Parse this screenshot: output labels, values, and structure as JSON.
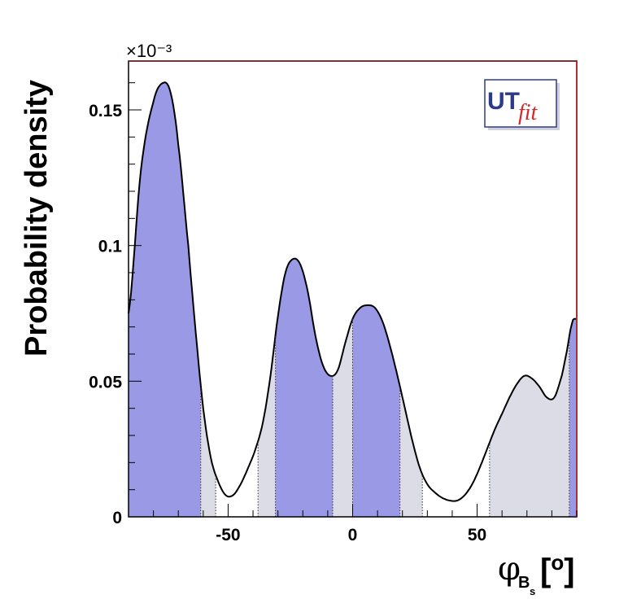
{
  "chart_data": {
    "type": "area",
    "xlabel": {
      "symbol": "φ",
      "subscript": "B",
      "subsubscript": "s",
      "unit": "[o]"
    },
    "ylabel": "Probability density",
    "y_multiplier": "×10⁻³",
    "xlim": [
      -90,
      90
    ],
    "ylim": [
      0,
      0.168
    ],
    "x_ticks": [
      "-50",
      "0",
      "50"
    ],
    "x_tick_values": [
      -50,
      0,
      50
    ],
    "y_ticks": [
      "0",
      "0.05",
      "0.1",
      "0.15"
    ],
    "y_tick_values": [
      0,
      0.05,
      0.1,
      0.15
    ],
    "curve": {
      "x": [
        -90,
        -85,
        -80,
        -76,
        -73,
        -70,
        -66,
        -63,
        -60,
        -57,
        -54,
        -51,
        -48,
        -45,
        -42,
        -39,
        -36,
        -33,
        -30,
        -27,
        -24,
        -21,
        -18,
        -15,
        -12,
        -9,
        -6,
        -3,
        0,
        3,
        6,
        9,
        12,
        15,
        18,
        21,
        24,
        27,
        30,
        33,
        36,
        39,
        42,
        45,
        48,
        51,
        54,
        57,
        60,
        63,
        66,
        69,
        72,
        75,
        78,
        81,
        84,
        86,
        88,
        89
      ],
      "y": [
        0.075,
        0.128,
        0.153,
        0.16,
        0.156,
        0.137,
        0.1,
        0.068,
        0.04,
        0.022,
        0.013,
        0.008,
        0.008,
        0.012,
        0.018,
        0.025,
        0.035,
        0.052,
        0.074,
        0.09,
        0.095,
        0.093,
        0.083,
        0.067,
        0.056,
        0.052,
        0.054,
        0.064,
        0.073,
        0.077,
        0.078,
        0.077,
        0.072,
        0.063,
        0.052,
        0.04,
        0.028,
        0.018,
        0.012,
        0.009,
        0.007,
        0.006,
        0.006,
        0.008,
        0.012,
        0.018,
        0.025,
        0.032,
        0.038,
        0.044,
        0.049,
        0.052,
        0.051,
        0.048,
        0.044,
        0.044,
        0.052,
        0.061,
        0.071,
        0.073
      ]
    },
    "regions": [
      {
        "from": -90,
        "to": -61,
        "level": "inner"
      },
      {
        "from": -61,
        "to": -55,
        "level": "outer"
      },
      {
        "from": -38,
        "to": -31,
        "level": "outer"
      },
      {
        "from": -31,
        "to": -8,
        "level": "inner"
      },
      {
        "from": -8,
        "to": 0,
        "level": "outer"
      },
      {
        "from": 0,
        "to": 19,
        "level": "inner"
      },
      {
        "from": 19,
        "to": 28,
        "level": "outer"
      },
      {
        "from": 55,
        "to": 87,
        "level": "outer"
      },
      {
        "from": 87,
        "to": 90,
        "level": "inner"
      }
    ],
    "colors": {
      "inner": "#9999e6",
      "outer": "#dcdce6",
      "curve": "#000000",
      "frame_right": "#b03030"
    },
    "legend": "none",
    "grid": false
  },
  "logo": {
    "ut": "UT",
    "fit": "fit"
  }
}
